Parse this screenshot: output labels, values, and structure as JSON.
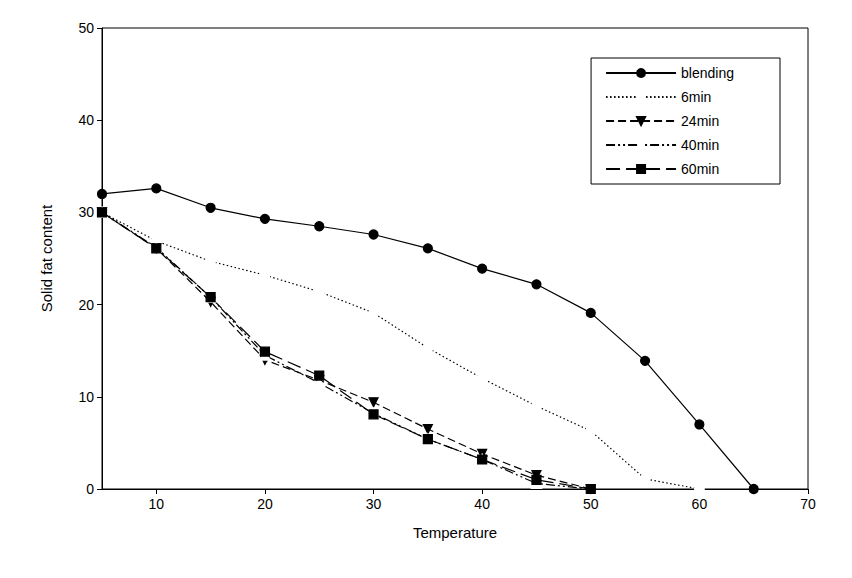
{
  "chart_data": {
    "type": "line",
    "x_label": "Temperature",
    "y_label": "Solid fat content",
    "xlim": [
      5,
      70
    ],
    "xticks": [
      10,
      20,
      30,
      40,
      50,
      60,
      70
    ],
    "ylim": [
      0,
      50
    ],
    "yticks": [
      0,
      10,
      20,
      30,
      40,
      50
    ],
    "grid": false,
    "legend": "upper right",
    "series": [
      {
        "name": "blending",
        "color": "#000000",
        "marker": "filled_circle",
        "line_style": "solid",
        "x": [
          5,
          10,
          15,
          20,
          25,
          30,
          35,
          40,
          45,
          50,
          55,
          60,
          65
        ],
        "values": [
          32.0,
          32.6,
          30.5,
          29.3,
          28.5,
          27.6,
          26.1,
          23.9,
          22.2,
          19.1,
          13.9,
          7.0,
          0
        ]
      },
      {
        "name": "6min",
        "color": "#000000",
        "marker": "open_circle",
        "line_style": "dotted",
        "x": [
          5,
          10,
          15,
          20,
          25,
          30,
          35,
          40,
          45,
          50,
          55,
          60
        ],
        "values": [
          30.0,
          26.9,
          24.7,
          23.2,
          21.4,
          19.1,
          15.3,
          12.0,
          9.0,
          6.3,
          1.1,
          0
        ]
      },
      {
        "name": "24min",
        "color": "#000000",
        "marker": "filled_triangle_down",
        "line_style": "dashed",
        "x": [
          5,
          10,
          15,
          20,
          25,
          30,
          35,
          40,
          45,
          50
        ],
        "values": [
          30.0,
          26.1,
          20.3,
          14.0,
          11.8,
          9.4,
          6.5,
          3.8,
          1.5,
          0
        ]
      },
      {
        "name": "40min",
        "color": "#000000",
        "marker": "open_triangle_up",
        "line_style": "dashdotdot",
        "x": [
          5,
          10,
          15,
          20,
          25,
          30,
          35,
          40,
          45,
          50
        ],
        "values": [
          30.0,
          26.2,
          20.8,
          14.5,
          11.5,
          8.2,
          5.4,
          3.2,
          0.6,
          0
        ]
      },
      {
        "name": "60min",
        "color": "#000000",
        "marker": "filled_square",
        "line_style": "longdash",
        "x": [
          5,
          10,
          15,
          20,
          25,
          30,
          35,
          40,
          45,
          50
        ],
        "values": [
          30.0,
          26.1,
          20.8,
          14.9,
          12.3,
          8.1,
          5.4,
          3.2,
          1.0,
          0
        ]
      }
    ]
  }
}
